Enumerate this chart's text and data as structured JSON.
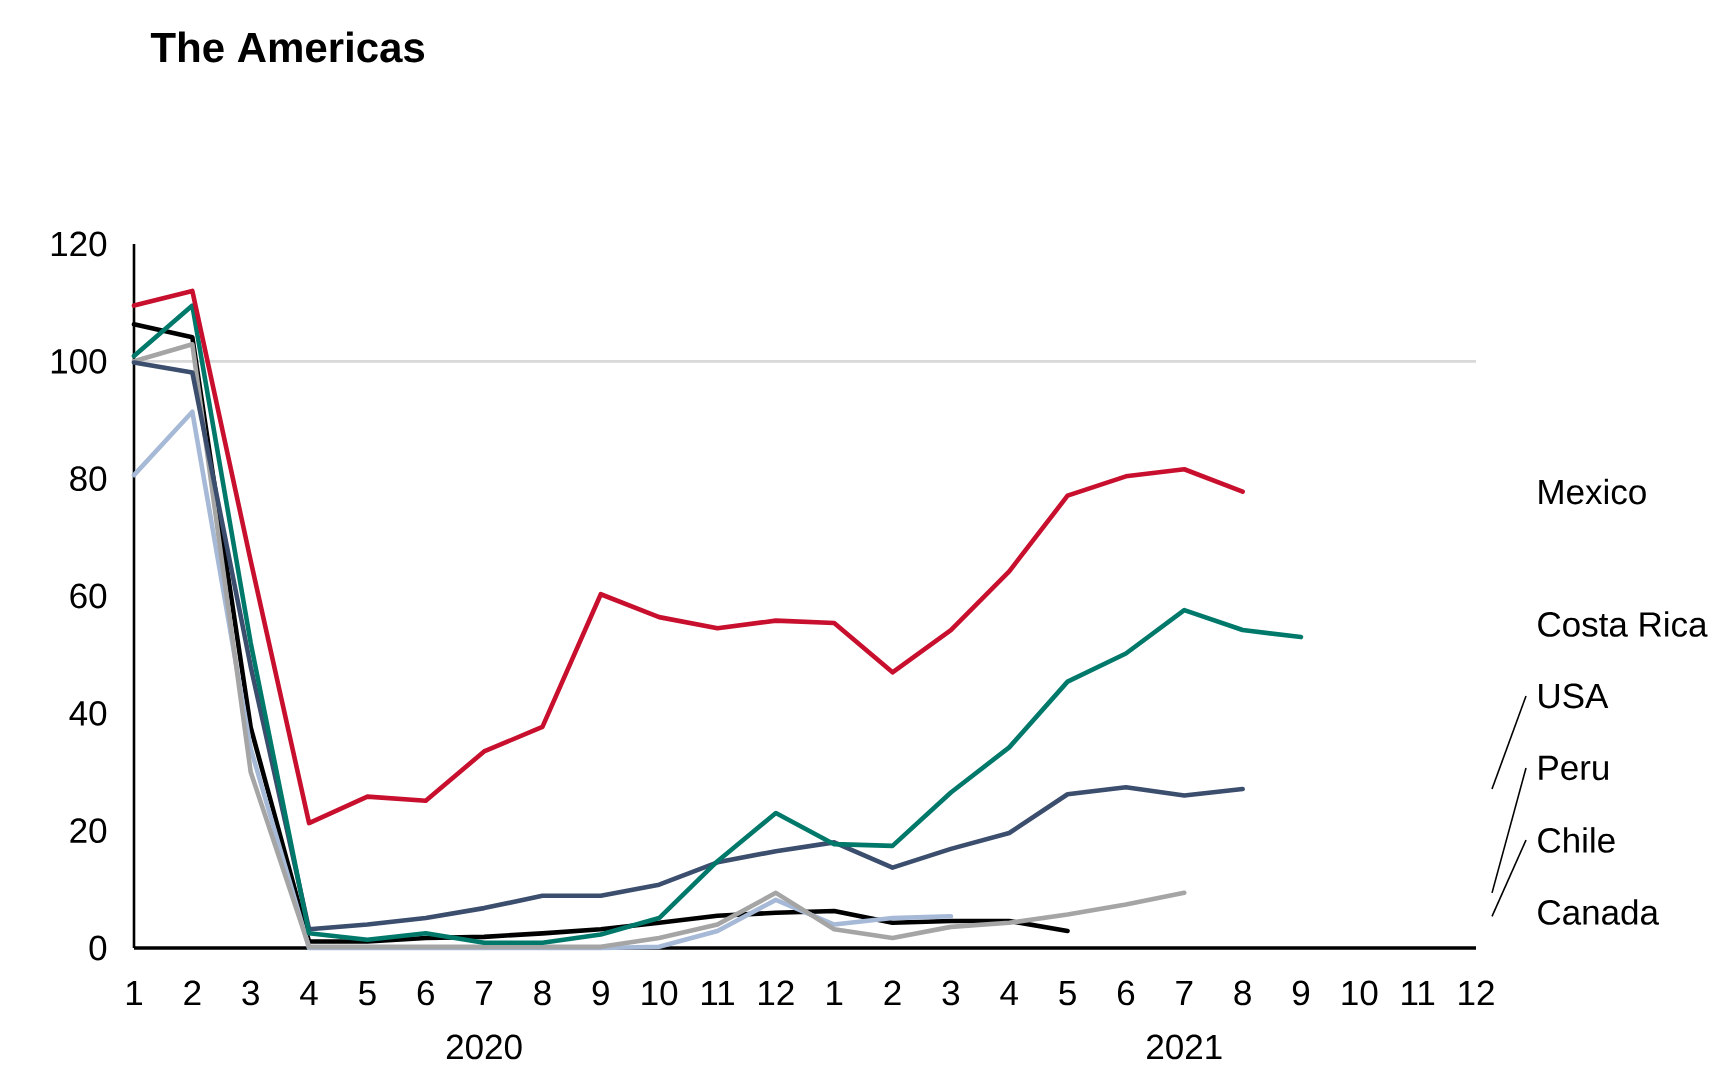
{
  "chart_data": {
    "type": "line",
    "title": "The Americas",
    "categories": [
      "1",
      "2",
      "3",
      "4",
      "5",
      "6",
      "7",
      "8",
      "9",
      "10",
      "11",
      "12",
      "1",
      "2",
      "3",
      "4",
      "5",
      "6",
      "7",
      "8",
      "9",
      "10",
      "11",
      "12"
    ],
    "annotations": [
      "2020",
      "2021"
    ],
    "ylim": [
      0,
      120
    ],
    "yticks": [
      0,
      20,
      40,
      60,
      80,
      100,
      120
    ],
    "ref_lines": [
      {
        "axis": "y",
        "value": 100,
        "color": "#d9d9d9"
      }
    ],
    "series": [
      {
        "name": "Mexico",
        "color": "#c8102e",
        "values": [
          109.5,
          112,
          66,
          21.3,
          25.8,
          25.1,
          33.5,
          37.7,
          60.3,
          56.4,
          54.5,
          55.8,
          55.4,
          47,
          54.2,
          64.2,
          77.1,
          80.4,
          81.6,
          77.8,
          null,
          null,
          null,
          null
        ]
      },
      {
        "name": "Costa Rica",
        "color": "#00796b",
        "values": [
          100.9,
          109.5,
          52,
          2.5,
          1.4,
          2.5,
          0.9,
          0.9,
          2.3,
          5.1,
          14.8,
          23,
          17.7,
          17.4,
          26.5,
          34.2,
          45.4,
          50.2,
          57.6,
          54.2,
          53,
          null,
          null,
          null
        ]
      },
      {
        "name": "USA",
        "color": "#3b4e6e",
        "values": [
          99.8,
          98.1,
          48,
          3.2,
          4,
          5.1,
          6.8,
          8.9,
          8.9,
          10.8,
          14.6,
          16.5,
          18,
          13.7,
          16.9,
          19.6,
          26.2,
          27.4,
          26,
          27.1,
          null,
          null,
          null,
          null
        ]
      },
      {
        "name": "Peru",
        "color": "#a5a5a5",
        "values": [
          100,
          102.9,
          30,
          0.2,
          0.2,
          0.2,
          0.2,
          0.2,
          0.2,
          1.7,
          4,
          9.4,
          3.2,
          1.7,
          3.6,
          4.3,
          5.7,
          7.4,
          9.4,
          null,
          null,
          null,
          null,
          null
        ]
      },
      {
        "name": "Chile",
        "color": "#a6b9d6",
        "values": [
          80.6,
          91.4,
          34,
          0,
          0,
          0,
          0,
          0,
          0,
          0.2,
          2.9,
          8.2,
          4,
          5.1,
          5.4,
          null,
          null,
          null,
          null,
          null,
          null,
          null,
          null,
          null
        ]
      },
      {
        "name": "Canada",
        "color": "#000000",
        "values": [
          106.3,
          104.1,
          37.6,
          1.1,
          1.1,
          1.7,
          1.9,
          2.5,
          3.2,
          4.3,
          5.5,
          6,
          6.3,
          4.3,
          4.6,
          4.6,
          2.9,
          null,
          null,
          null,
          null,
          null,
          null,
          null
        ]
      }
    ]
  }
}
